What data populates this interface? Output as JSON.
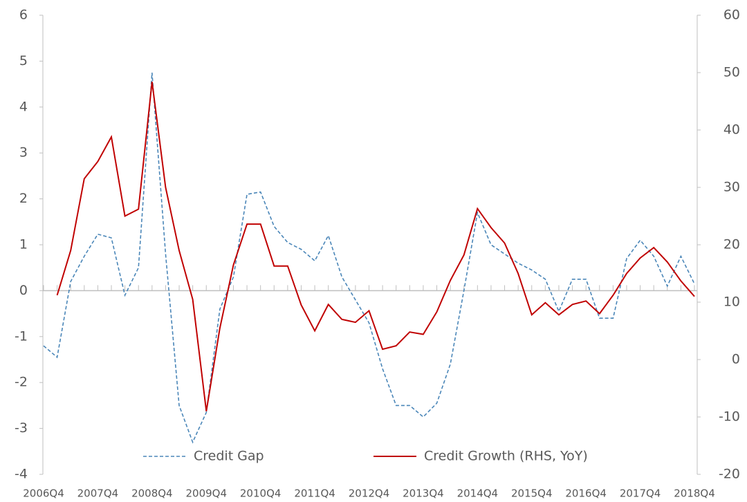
{
  "chart_data": {
    "type": "line",
    "categories": [
      "2006Q4",
      null,
      null,
      null,
      "2007Q4",
      null,
      null,
      null,
      "2008Q4",
      null,
      null,
      null,
      "2009Q4",
      null,
      null,
      null,
      "2010Q4",
      null,
      null,
      null,
      "2011Q4",
      null,
      null,
      null,
      "2012Q4",
      null,
      null,
      null,
      "2013Q4",
      null,
      null,
      null,
      "2014Q4",
      null,
      null,
      null,
      "2015Q4",
      null,
      null,
      null,
      "2016Q4",
      null,
      null,
      null,
      "2017Q4",
      null,
      null,
      null,
      "2018Q4"
    ],
    "series": [
      {
        "name": "Credit Gap",
        "color": "#4a86b8",
        "dashed": true,
        "values": [
          -1.2,
          -1.45,
          0.2,
          0.75,
          1.23,
          1.15,
          -0.1,
          0.5,
          4.75,
          0.8,
          -2.5,
          -3.3,
          -2.65,
          -0.4,
          0.3,
          2.1,
          2.15,
          1.4,
          1.05,
          0.9,
          0.65,
          1.2,
          0.3,
          -0.2,
          -0.7,
          -1.7,
          -2.5,
          -2.5,
          -2.75,
          -2.45,
          -1.6,
          0,
          1.7,
          1.0,
          0.8,
          0.6,
          0.45,
          0.25,
          -0.45,
          0.25,
          0.25,
          -0.6,
          -0.6,
          0.7,
          1.1,
          0.75,
          0.1,
          0.75,
          0.15
        ]
      },
      {
        "name": "Credit Growth (RHS, YoY)",
        "color": "#c00000",
        "axis": "y2",
        "values": [
          null,
          11.2,
          19,
          31.5,
          34.5,
          38.8,
          25,
          26.2,
          48.4,
          30,
          19,
          10.5,
          -9,
          5.5,
          16.5,
          23.6,
          23.6,
          16.3,
          16.3,
          9.5,
          5,
          9.6,
          7,
          6.5,
          8.5,
          1.8,
          2.4,
          4.8,
          4.4,
          8.3,
          13.8,
          18.2,
          26.3,
          23,
          20.3,
          15,
          7.8,
          9.9,
          7.8,
          9.6,
          10.2,
          8,
          11.2,
          15,
          17.7,
          19.5,
          17,
          13.7,
          11.0
        ]
      }
    ],
    "ylim": [
      -4,
      6
    ],
    "yticks": [
      -4,
      -3,
      -2,
      -1,
      0,
      1,
      2,
      3,
      4,
      5,
      6
    ],
    "y2lim": [
      -20,
      60
    ],
    "y2ticks": [
      -20,
      -10,
      0,
      10,
      20,
      30,
      40,
      50,
      60
    ],
    "legend": "bottom"
  }
}
